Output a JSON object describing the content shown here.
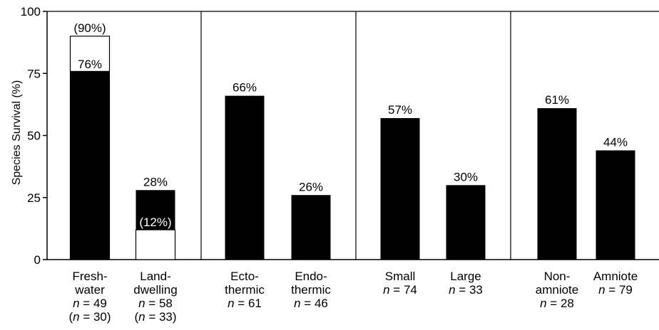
{
  "chart_data": {
    "type": "bar",
    "ylabel": "Species Survival (%)",
    "ylim": [
      0,
      100
    ],
    "yticks": [
      0,
      25,
      50,
      75,
      100
    ],
    "grid": false,
    "groups": [
      {
        "categories": [
          {
            "lines": [
              "Fresh-",
              "water",
              "n = 49",
              "(n = 30)"
            ],
            "value": 76,
            "label": "76%",
            "secondary_value": 90,
            "secondary_label": "(90%)"
          },
          {
            "lines": [
              "Land-",
              "dwelling",
              "n = 58",
              "(n = 33)"
            ],
            "value": 28,
            "label": "28%",
            "secondary_value": 12,
            "secondary_label": "(12%)"
          }
        ]
      },
      {
        "categories": [
          {
            "lines": [
              "Ecto-",
              "thermic",
              "n = 61"
            ],
            "value": 66,
            "label": "66%"
          },
          {
            "lines": [
              "Endo-",
              "thermic",
              "n = 46"
            ],
            "value": 26,
            "label": "26%"
          }
        ]
      },
      {
        "categories": [
          {
            "lines": [
              "Small",
              "n = 74"
            ],
            "value": 57,
            "label": "57%"
          },
          {
            "lines": [
              "Large",
              "n = 33"
            ],
            "value": 30,
            "label": "30%"
          }
        ]
      },
      {
        "categories": [
          {
            "lines": [
              "Non-",
              "amniote",
              "n = 28"
            ],
            "value": 61,
            "label": "61%"
          },
          {
            "lines": [
              "Amniote",
              "n = 79"
            ],
            "value": 44,
            "label": "44%"
          }
        ]
      }
    ],
    "colors": {
      "bar": "#000000",
      "secondary_bar": "#ffffff",
      "axis": "#000000"
    }
  }
}
